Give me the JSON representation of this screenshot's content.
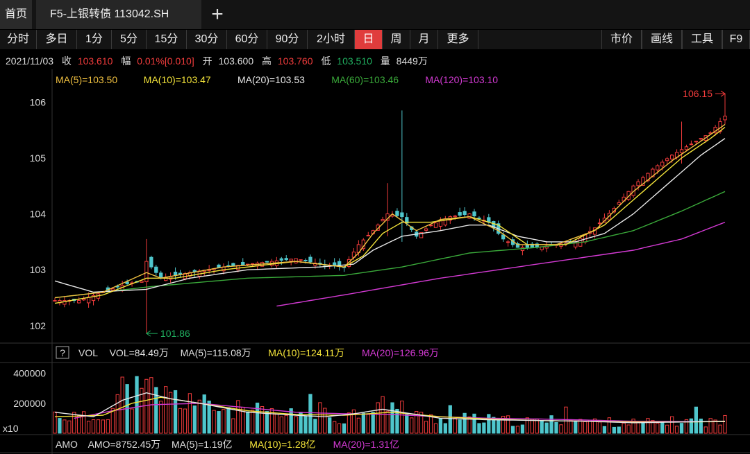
{
  "tabs": {
    "home": "首页",
    "active": "F5-上银转债 113042.SH",
    "add": "+"
  },
  "periods": [
    "分时",
    "多日",
    "1分",
    "5分",
    "15分",
    "30分",
    "60分",
    "90分",
    "2小时",
    "日",
    "周",
    "月",
    "更多"
  ],
  "active_period": "日",
  "right_tools": [
    "市价",
    "画线",
    "工具",
    "F9"
  ],
  "quote": {
    "date": "2021/11/03",
    "close_label": "收",
    "close": "103.610",
    "change_label": "幅",
    "change": "0.01%[0.010]",
    "open_label": "开",
    "open": "103.600",
    "high_label": "高",
    "high": "103.760",
    "low_label": "低",
    "low": "103.510",
    "volume_label": "量",
    "volume": "8449万"
  },
  "price_legend": [
    {
      "text": "MA(5)=103.50",
      "color": "#f0c040"
    },
    {
      "text": "MA(10)=103.47",
      "color": "#f5e53a"
    },
    {
      "text": "MA(20)=103.53",
      "color": "#e8e8e8"
    },
    {
      "text": "MA(60)=103.46",
      "color": "#3aaa3a"
    },
    {
      "text": "MA(120)=103.10",
      "color": "#d43ad4"
    }
  ],
  "vol_legend": {
    "help": "?",
    "items": [
      {
        "text": "VOL",
        "color": "#e0e0e0"
      },
      {
        "text": "VOL=84.49万",
        "color": "#e0e0e0"
      },
      {
        "text": "MA(5)=115.08万",
        "color": "#e0e0e0"
      },
      {
        "text": "MA(10)=124.11万",
        "color": "#f5e53a"
      },
      {
        "text": "MA(20)=126.96万",
        "color": "#d43ad4"
      }
    ]
  },
  "amo_legend": [
    {
      "text": "AMO",
      "color": "#e0e0e0"
    },
    {
      "text": "AMO=8752.45万",
      "color": "#e0e0e0"
    },
    {
      "text": "MA(5)=1.19亿",
      "color": "#e0e0e0"
    },
    {
      "text": "MA(10)=1.28亿",
      "color": "#f5e53a"
    },
    {
      "text": "MA(20)=1.31亿",
      "color": "#d43ad4"
    }
  ],
  "colors": {
    "up": "#f23c3c",
    "down": "#4fc6cc",
    "ma5": "#f0c040",
    "ma10": "#f5e53a",
    "ma20": "#e8e8e8",
    "ma60": "#3aaa3a",
    "ma120": "#d43ad4"
  },
  "chart_data": {
    "type": "candlestick",
    "price_axis": {
      "ticks": [
        102,
        103,
        104,
        105,
        106
      ],
      "ylim": [
        101.75,
        106.4
      ]
    },
    "volume_axis": {
      "ticks": [
        "400000",
        "200000"
      ],
      "tick_values": [
        400000,
        200000
      ],
      "unit_label": "x10",
      "ylim": [
        0,
        440000
      ]
    },
    "max_marker": {
      "label": "106.15",
      "index": 139,
      "value": 106.15
    },
    "min_marker": {
      "label": "101.86",
      "index": 19,
      "value": 101.86
    },
    "price_anchors": [
      [
        0,
        102.45
      ],
      [
        5,
        102.45
      ],
      [
        10,
        102.6
      ],
      [
        15,
        102.75
      ],
      [
        18,
        102.8
      ],
      [
        19,
        103.15
      ],
      [
        22,
        102.85
      ],
      [
        28,
        102.95
      ],
      [
        35,
        103.05
      ],
      [
        45,
        103.15
      ],
      [
        50,
        103.2
      ],
      [
        55,
        103.1
      ],
      [
        60,
        103.05
      ],
      [
        63,
        103.45
      ],
      [
        66,
        103.7
      ],
      [
        69,
        104.0
      ],
      [
        72,
        103.95
      ],
      [
        75,
        103.6
      ],
      [
        78,
        103.8
      ],
      [
        82,
        103.95
      ],
      [
        86,
        104.0
      ],
      [
        90,
        103.85
      ],
      [
        93,
        103.55
      ],
      [
        96,
        103.4
      ],
      [
        100,
        103.4
      ],
      [
        104,
        103.45
      ],
      [
        108,
        103.5
      ],
      [
        112,
        103.75
      ],
      [
        116,
        104.1
      ],
      [
        120,
        104.5
      ],
      [
        124,
        104.8
      ],
      [
        128,
        105.05
      ],
      [
        132,
        105.25
      ],
      [
        136,
        105.45
      ],
      [
        139,
        105.75
      ]
    ],
    "spikes": [
      {
        "index": 19,
        "high": 103.55,
        "low": 101.86
      },
      {
        "index": 72,
        "high": 105.85,
        "low": 103.5
      },
      {
        "index": 69,
        "high": 104.55,
        "low": 103.6
      },
      {
        "index": 130,
        "high": 105.65,
        "low": 104.9
      },
      {
        "index": 139,
        "high": 106.15,
        "low": 105.6
      }
    ],
    "ma5_anchors": [
      [
        0,
        102.5
      ],
      [
        10,
        102.6
      ],
      [
        19,
        102.95
      ],
      [
        22,
        102.85
      ],
      [
        35,
        103.05
      ],
      [
        50,
        103.15
      ],
      [
        60,
        103.05
      ],
      [
        63,
        103.3
      ],
      [
        66,
        103.65
      ],
      [
        70,
        104.0
      ],
      [
        75,
        103.7
      ],
      [
        80,
        103.9
      ],
      [
        86,
        103.95
      ],
      [
        92,
        103.7
      ],
      [
        96,
        103.45
      ],
      [
        104,
        103.45
      ],
      [
        112,
        103.7
      ],
      [
        120,
        104.4
      ],
      [
        128,
        104.95
      ],
      [
        134,
        105.3
      ],
      [
        139,
        105.6
      ]
    ],
    "ma10_anchors": [
      [
        0,
        102.4
      ],
      [
        10,
        102.55
      ],
      [
        19,
        102.85
      ],
      [
        25,
        102.85
      ],
      [
        35,
        103.0
      ],
      [
        50,
        103.15
      ],
      [
        60,
        103.05
      ],
      [
        64,
        103.25
      ],
      [
        68,
        103.65
      ],
      [
        72,
        103.85
      ],
      [
        78,
        103.85
      ],
      [
        86,
        103.95
      ],
      [
        92,
        103.8
      ],
      [
        98,
        103.45
      ],
      [
        106,
        103.45
      ],
      [
        114,
        103.8
      ],
      [
        122,
        104.4
      ],
      [
        130,
        105.0
      ],
      [
        136,
        105.35
      ],
      [
        139,
        105.55
      ]
    ],
    "ma20_anchors": [
      [
        0,
        102.8
      ],
      [
        8,
        102.6
      ],
      [
        19,
        102.65
      ],
      [
        28,
        102.85
      ],
      [
        40,
        103.0
      ],
      [
        55,
        103.05
      ],
      [
        62,
        103.1
      ],
      [
        66,
        103.35
      ],
      [
        72,
        103.6
      ],
      [
        80,
        103.7
      ],
      [
        86,
        103.8
      ],
      [
        90,
        103.8
      ],
      [
        96,
        103.6
      ],
      [
        102,
        103.5
      ],
      [
        108,
        103.5
      ],
      [
        114,
        103.65
      ],
      [
        120,
        104.0
      ],
      [
        128,
        104.6
      ],
      [
        134,
        105.05
      ],
      [
        139,
        105.35
      ]
    ],
    "ma60_anchors": [
      [
        0,
        102.5
      ],
      [
        20,
        102.7
      ],
      [
        40,
        102.85
      ],
      [
        60,
        102.9
      ],
      [
        72,
        103.05
      ],
      [
        86,
        103.3
      ],
      [
        100,
        103.4
      ],
      [
        110,
        103.5
      ],
      [
        120,
        103.7
      ],
      [
        130,
        104.05
      ],
      [
        139,
        104.4
      ]
    ],
    "ma120_anchors": [
      [
        46,
        102.35
      ],
      [
        60,
        102.55
      ],
      [
        80,
        102.85
      ],
      [
        100,
        103.1
      ],
      [
        120,
        103.35
      ],
      [
        130,
        103.55
      ],
      [
        139,
        103.85
      ]
    ],
    "volume_anchors": [
      [
        0,
        125000
      ],
      [
        8,
        95000
      ],
      [
        12,
        175000
      ],
      [
        14,
        300000
      ],
      [
        15,
        250000
      ],
      [
        19,
        320000
      ],
      [
        22,
        260000
      ],
      [
        26,
        225000
      ],
      [
        30,
        190000
      ],
      [
        36,
        160000
      ],
      [
        42,
        140000
      ],
      [
        48,
        110000
      ],
      [
        54,
        160000
      ],
      [
        58,
        95000
      ],
      [
        62,
        130000
      ],
      [
        66,
        200000
      ],
      [
        70,
        150000
      ],
      [
        74,
        115000
      ],
      [
        80,
        100000
      ],
      [
        86,
        95000
      ],
      [
        92,
        85000
      ],
      [
        98,
        75000
      ],
      [
        106,
        90000
      ],
      [
        112,
        75000
      ],
      [
        118,
        70000
      ],
      [
        124,
        70000
      ],
      [
        130,
        80000
      ],
      [
        136,
        75000
      ],
      [
        139,
        85000
      ]
    ],
    "volume_spikes": [
      {
        "index": 14,
        "value": 375000
      },
      {
        "index": 18,
        "value": 300000
      },
      {
        "index": 19,
        "value": 360000
      },
      {
        "index": 28,
        "value": 265000
      },
      {
        "index": 53,
        "value": 260000
      },
      {
        "index": 68,
        "value": 245000
      },
      {
        "index": 72,
        "value": 215000
      },
      {
        "index": 82,
        "value": 185000
      },
      {
        "index": 106,
        "value": 175000
      },
      {
        "index": 133,
        "value": 175000
      }
    ],
    "volume_ma5_anchors": [
      [
        0,
        140000
      ],
      [
        8,
        110000
      ],
      [
        14,
        220000
      ],
      [
        19,
        270000
      ],
      [
        24,
        230000
      ],
      [
        30,
        200000
      ],
      [
        40,
        140000
      ],
      [
        50,
        120000
      ],
      [
        56,
        110000
      ],
      [
        62,
        130000
      ],
      [
        68,
        160000
      ],
      [
        74,
        130000
      ],
      [
        80,
        100000
      ],
      [
        90,
        90000
      ],
      [
        100,
        85000
      ],
      [
        110,
        80000
      ],
      [
        120,
        70000
      ],
      [
        130,
        75000
      ],
      [
        139,
        80000
      ]
    ],
    "volume_ma10_anchors": [
      [
        0,
        110000
      ],
      [
        10,
        120000
      ],
      [
        16,
        200000
      ],
      [
        22,
        240000
      ],
      [
        30,
        200000
      ],
      [
        40,
        150000
      ],
      [
        50,
        125000
      ],
      [
        60,
        120000
      ],
      [
        70,
        140000
      ],
      [
        80,
        110000
      ],
      [
        90,
        95000
      ],
      [
        100,
        85000
      ],
      [
        110,
        80000
      ],
      [
        120,
        75000
      ],
      [
        130,
        75000
      ],
      [
        139,
        78000
      ]
    ],
    "volume_ma20_anchors": [
      [
        4,
        100000
      ],
      [
        12,
        150000
      ],
      [
        20,
        190000
      ],
      [
        30,
        200000
      ],
      [
        40,
        170000
      ],
      [
        50,
        140000
      ],
      [
        60,
        130000
      ],
      [
        70,
        125000
      ],
      [
        80,
        110000
      ],
      [
        90,
        100000
      ],
      [
        100,
        95000
      ],
      [
        110,
        88000
      ],
      [
        120,
        80000
      ],
      [
        130,
        78000
      ],
      [
        139,
        78000
      ]
    ],
    "n_bars": 140
  }
}
